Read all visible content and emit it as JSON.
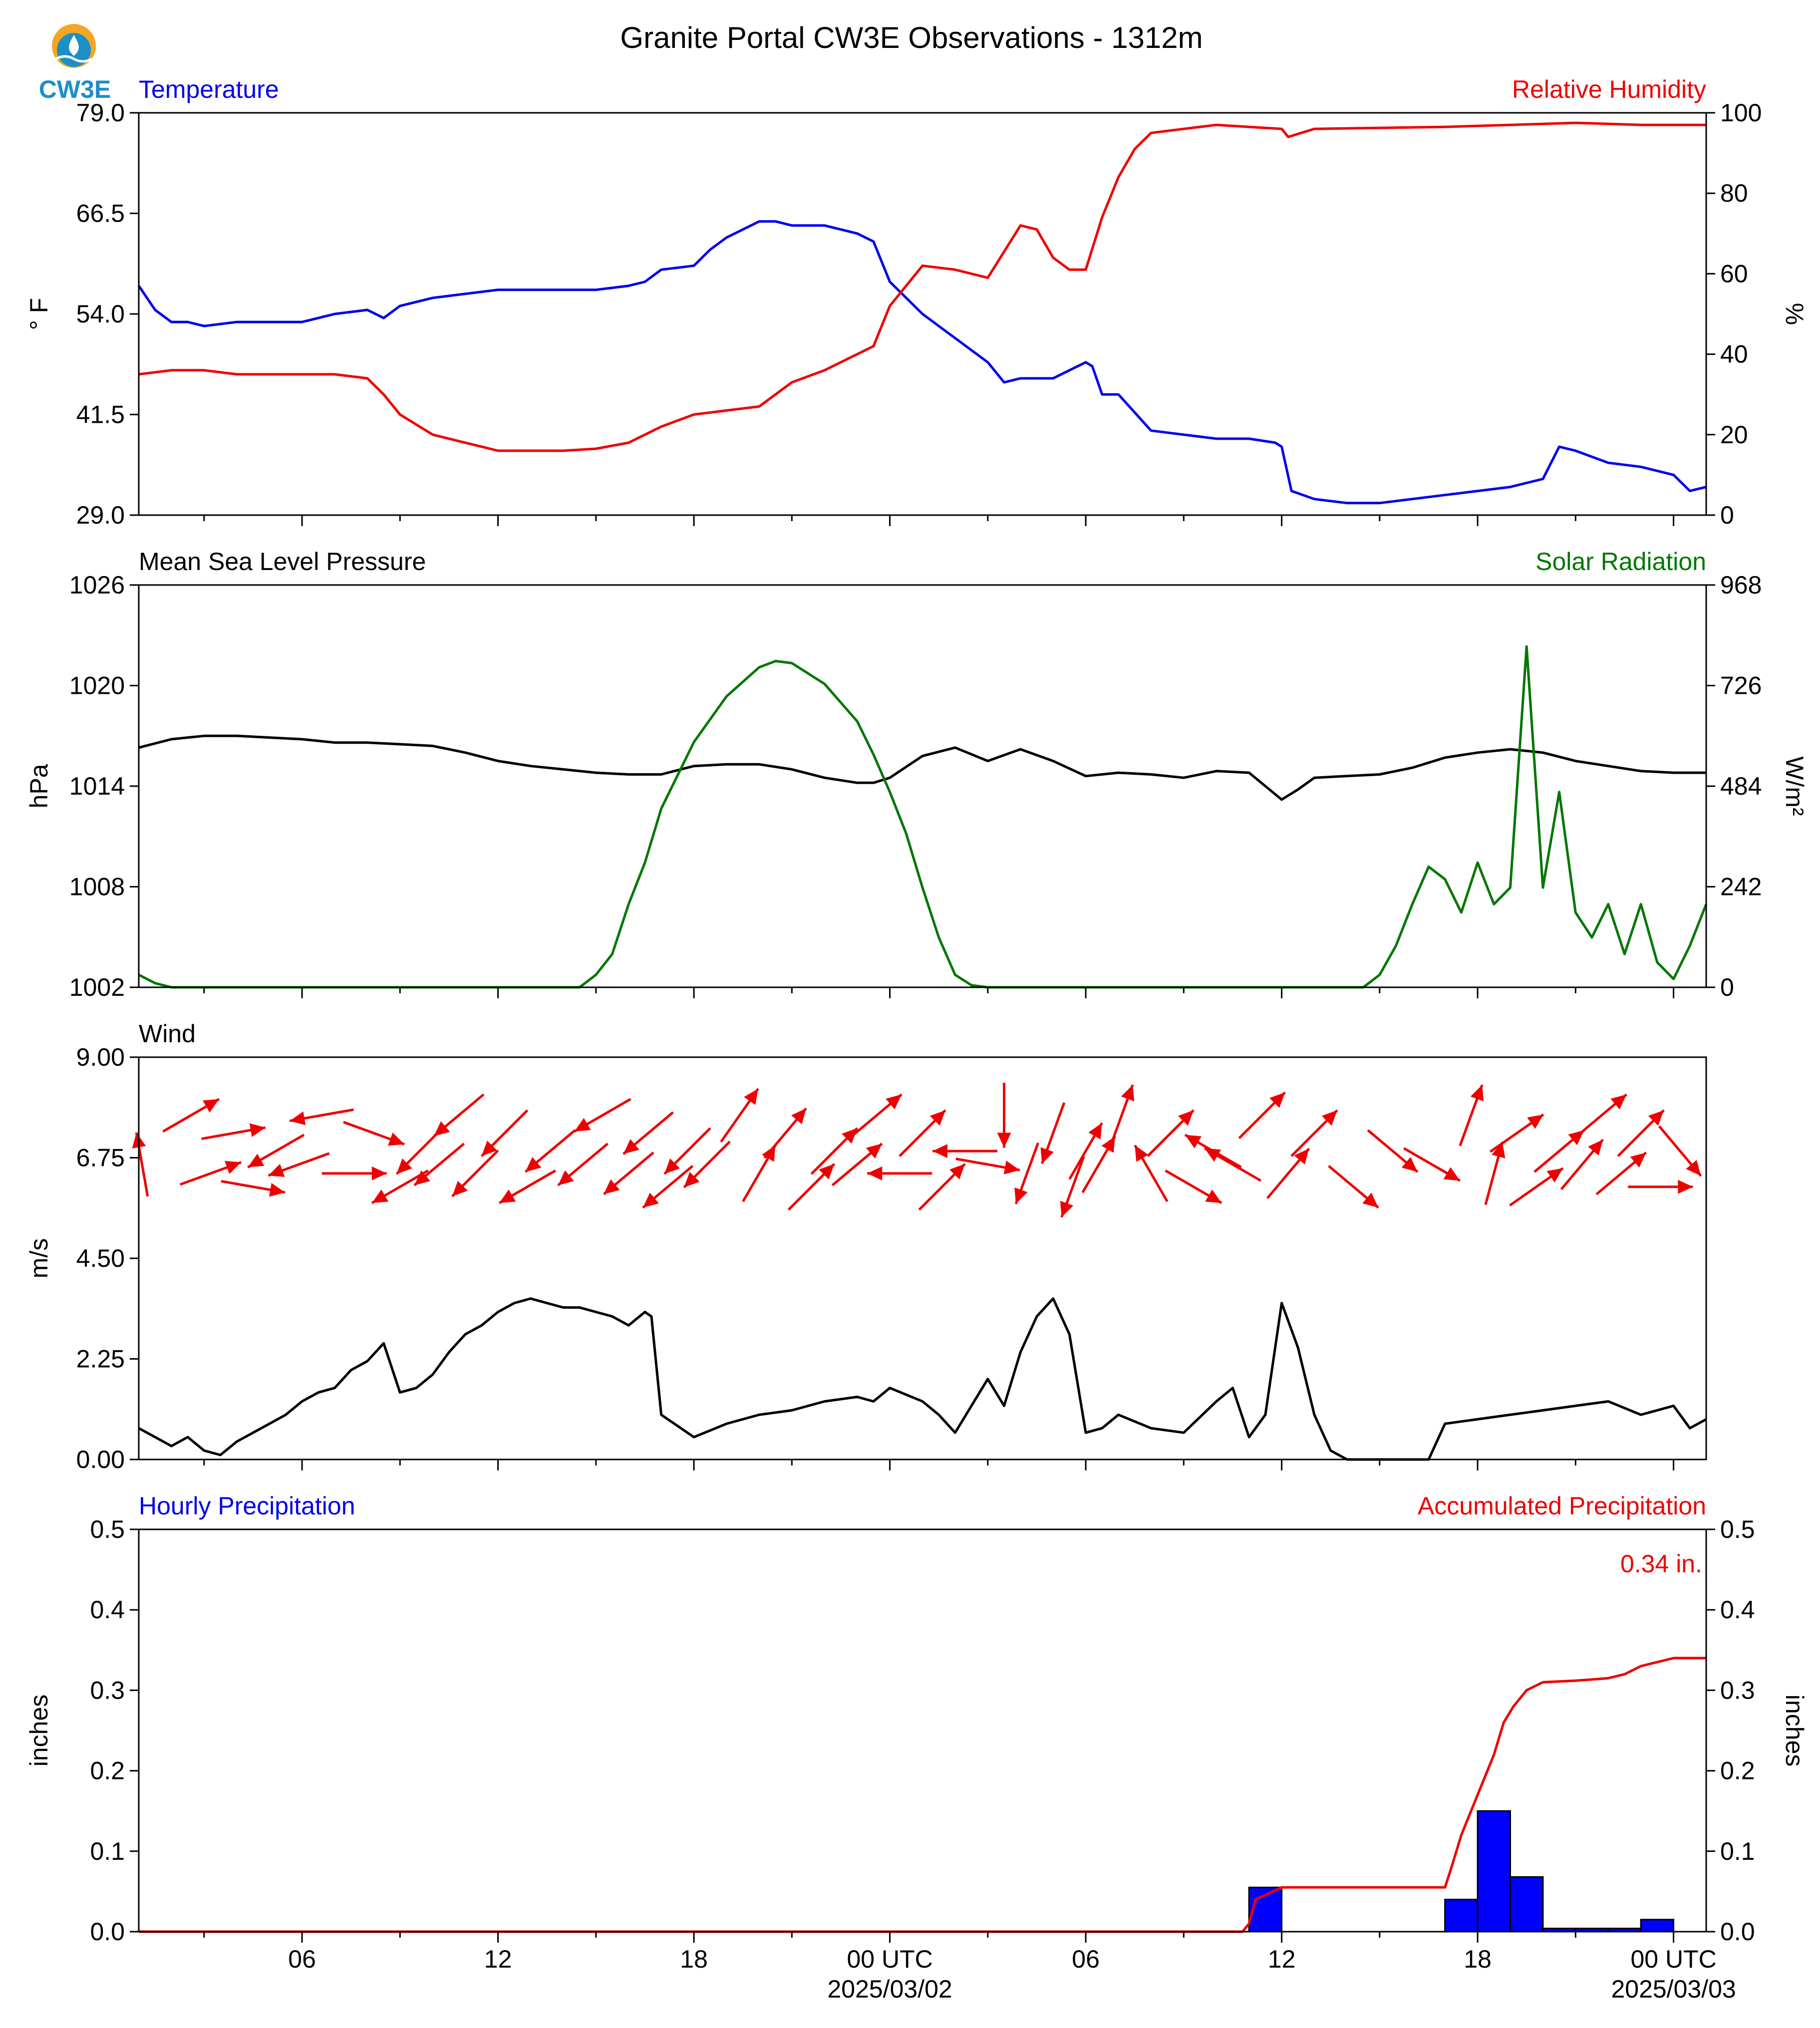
{
  "title": "Granite Portal CW3E Observations - 1312m",
  "logo_text": "CW3E",
  "colors": {
    "blue": "#0000ee",
    "red": "#ee0000",
    "green": "#007700",
    "black": "#000000",
    "bar": "#0000ff"
  },
  "x_axis": {
    "range_hours": [
      0,
      48
    ],
    "ticks": [
      {
        "h": 5,
        "label": "06",
        "sub": ""
      },
      {
        "h": 11,
        "label": "12",
        "sub": ""
      },
      {
        "h": 17,
        "label": "18",
        "sub": ""
      },
      {
        "h": 23,
        "label": "00 UTC",
        "sub": "2025/03/02"
      },
      {
        "h": 29,
        "label": "06",
        "sub": ""
      },
      {
        "h": 35,
        "label": "12",
        "sub": ""
      },
      {
        "h": 41,
        "label": "18",
        "sub": ""
      },
      {
        "h": 47,
        "label": "00 UTC",
        "sub": "2025/03/03"
      }
    ],
    "minor_hours": [
      2,
      8,
      14,
      20,
      26,
      32,
      38,
      44
    ]
  },
  "chart_data": [
    {
      "type": "line",
      "left_title": "Temperature",
      "right_title": "Relative Humidity",
      "ylabel_left": "° F",
      "ylabel_right": "%",
      "ylim_left": [
        29.0,
        79.0
      ],
      "yticks_left": [
        "29.0",
        "41.5",
        "54.0",
        "66.5",
        "79.0"
      ],
      "ylim_right": [
        0,
        100
      ],
      "yticks_right": [
        "0",
        "20",
        "40",
        "60",
        "80",
        "100"
      ],
      "series": [
        {
          "name": "Temperature",
          "axis": "left",
          "color": "#0000ee",
          "x": [
            0,
            0.5,
            1,
            1.5,
            2,
            3,
            4,
            5,
            6,
            7,
            7.5,
            8,
            9,
            10,
            11,
            12,
            13,
            14,
            15,
            15.5,
            16,
            17,
            17.5,
            18,
            19,
            19.5,
            20,
            21,
            22,
            22.5,
            22.8,
            23,
            24,
            25,
            26,
            26.5,
            27,
            28,
            29,
            29.2,
            29.5,
            30,
            31,
            32,
            33,
            34,
            34.8,
            35.0,
            35.3,
            36,
            37,
            38,
            40,
            42,
            42.5,
            43,
            43.5,
            44,
            45,
            46,
            47,
            47.5,
            48
          ],
          "y": [
            57.5,
            54.5,
            53,
            53,
            52.5,
            53,
            53,
            53,
            54,
            54.5,
            53.5,
            55,
            56,
            56.5,
            57,
            57,
            57,
            57,
            57.5,
            58,
            59.5,
            60,
            62,
            63.5,
            65.5,
            65.5,
            65,
            65,
            64,
            63,
            60,
            58,
            54,
            51,
            48,
            45.5,
            46,
            46,
            48,
            47.5,
            44,
            44,
            39.5,
            39,
            38.5,
            38.5,
            38,
            37.5,
            32,
            31,
            30.5,
            30.5,
            31.5,
            32.5,
            33,
            33.5,
            37.5,
            37,
            35.5,
            35,
            34,
            32,
            32.5
          ]
        },
        {
          "name": "Relative Humidity",
          "axis": "right",
          "color": "#ee0000",
          "x": [
            0,
            1,
            2,
            3,
            4,
            5,
            6,
            7,
            7.5,
            8,
            9,
            10,
            11,
            12,
            13,
            14,
            15,
            16,
            17,
            18,
            19,
            20,
            21,
            22,
            22.5,
            23,
            24,
            25,
            26,
            27,
            27.5,
            28,
            28.5,
            29,
            29.5,
            30,
            30.5,
            31,
            32,
            33,
            34,
            35,
            35.2,
            36,
            40,
            42,
            44,
            46,
            48
          ],
          "y": [
            35,
            36,
            36,
            35,
            35,
            35,
            35,
            34,
            30,
            25,
            20,
            18,
            16,
            16,
            16,
            16.5,
            18,
            22,
            25,
            26,
            27,
            33,
            36,
            40,
            42,
            52,
            62,
            61,
            59,
            72,
            71,
            64,
            61,
            61,
            74,
            84,
            91,
            95,
            96,
            97,
            96.5,
            96,
            94,
            96,
            96.5,
            97,
            97.5,
            97,
            97
          ]
        }
      ]
    },
    {
      "type": "line",
      "left_title": "Mean Sea Level Pressure",
      "right_title": "Solar Radiation",
      "ylabel_left": "hPa",
      "ylabel_right": "W/m²",
      "ylim_left": [
        1002,
        1026
      ],
      "yticks_left": [
        "1002",
        "1008",
        "1014",
        "1020",
        "1026"
      ],
      "ylim_right": [
        0,
        968
      ],
      "yticks_right": [
        "0",
        "242",
        "484",
        "726",
        "968"
      ],
      "series": [
        {
          "name": "Mean Sea Level Pressure",
          "axis": "left",
          "color": "#000000",
          "x": [
            0,
            1,
            2,
            3,
            4,
            5,
            6,
            7,
            8,
            9,
            10,
            11,
            12,
            13,
            14,
            15,
            16,
            17,
            18,
            19,
            20,
            21,
            22,
            22.5,
            23,
            24,
            25,
            26,
            27,
            28,
            29,
            30,
            31,
            32,
            33,
            34,
            34.5,
            35,
            35.5,
            36,
            37,
            38,
            39,
            40,
            41,
            42,
            43,
            44,
            45,
            46,
            47,
            48
          ],
          "y": [
            1016.3,
            1016.8,
            1017,
            1017,
            1016.9,
            1016.8,
            1016.6,
            1016.6,
            1016.5,
            1016.4,
            1016,
            1015.5,
            1015.2,
            1015,
            1014.8,
            1014.7,
            1014.7,
            1015.2,
            1015.3,
            1015.3,
            1015,
            1014.5,
            1014.2,
            1014.2,
            1014.5,
            1015.8,
            1016.3,
            1015.5,
            1016.2,
            1015.5,
            1014.6,
            1014.8,
            1014.7,
            1014.5,
            1014.9,
            1014.8,
            1014.0,
            1013.2,
            1013.8,
            1014.5,
            1014.6,
            1014.7,
            1015.1,
            1015.7,
            1016.0,
            1016.2,
            1016.0,
            1015.5,
            1015.2,
            1014.9,
            1014.8,
            1014.8
          ]
        },
        {
          "name": "Solar Radiation",
          "axis": "right",
          "color": "#007700",
          "x": [
            0,
            0.5,
            1,
            13.5,
            14,
            14.5,
            15,
            15.5,
            16,
            17,
            18,
            19,
            19.5,
            20,
            21,
            22,
            22.5,
            23,
            23.5,
            24,
            24.5,
            25,
            25.5,
            26,
            26.5,
            37.5,
            38,
            38.5,
            39,
            39.5,
            40,
            40.5,
            41,
            41.5,
            42,
            42.5,
            43,
            43.5,
            44,
            44.5,
            45,
            45.5,
            46,
            46.5,
            47,
            47.5,
            48
          ],
          "y": [
            30,
            10,
            0,
            0,
            30,
            80,
            200,
            300,
            430,
            590,
            700,
            770,
            785,
            780,
            730,
            640,
            560,
            470,
            370,
            240,
            120,
            30,
            5,
            0,
            0,
            0,
            30,
            100,
            200,
            290,
            260,
            180,
            300,
            200,
            240,
            820,
            240,
            470,
            180,
            120,
            200,
            80,
            200,
            60,
            20,
            100,
            200
          ]
        }
      ]
    },
    {
      "type": "line",
      "left_title": "Wind",
      "ylabel_left": "m/s",
      "ylim_left": [
        0,
        9.0
      ],
      "yticks_left": [
        "0.00",
        "2.25",
        "4.50",
        "6.75",
        "9.00"
      ],
      "series": [
        {
          "name": "Wind",
          "axis": "left",
          "color": "#000000",
          "x": [
            0,
            0.5,
            1,
            1.5,
            2,
            2.5,
            3,
            3.5,
            4,
            4.5,
            5,
            5.5,
            6,
            6.5,
            7,
            7.5,
            8,
            8.5,
            9,
            9.5,
            10,
            10.5,
            11,
            11.5,
            12,
            12.5,
            13,
            13.5,
            14,
            14.5,
            15,
            15.5,
            15.7,
            16,
            17,
            18,
            19,
            20,
            21,
            22,
            22.5,
            23,
            24,
            24.5,
            25,
            25.5,
            26,
            26.5,
            27,
            27.5,
            28,
            28.5,
            29,
            29.5,
            30,
            31,
            32,
            33,
            33.5,
            34,
            34.5,
            35,
            35.5,
            36,
            36.5,
            37,
            38,
            39,
            39.5,
            40,
            41,
            42,
            43,
            44,
            45,
            46,
            47,
            47.5,
            48
          ],
          "y": [
            0.7,
            0.5,
            0.3,
            0.5,
            0.2,
            0.1,
            0.4,
            0.6,
            0.8,
            1.0,
            1.3,
            1.5,
            1.6,
            2.0,
            2.2,
            2.6,
            1.5,
            1.6,
            1.9,
            2.4,
            2.8,
            3.0,
            3.3,
            3.5,
            3.6,
            3.5,
            3.4,
            3.4,
            3.3,
            3.2,
            3.0,
            3.3,
            3.2,
            1.0,
            0.5,
            0.8,
            1.0,
            1.1,
            1.3,
            1.4,
            1.3,
            1.6,
            1.3,
            1.0,
            0.6,
            1.2,
            1.8,
            1.2,
            2.4,
            3.2,
            3.6,
            2.8,
            0.6,
            0.7,
            1.0,
            0.7,
            0.6,
            1.3,
            1.6,
            0.5,
            1.0,
            3.5,
            2.5,
            1.0,
            0.2,
            0,
            0,
            0,
            0,
            0.8,
            0.9,
            1.0,
            1.1,
            1.2,
            1.3,
            1.0,
            1.2,
            0.7,
            0.9
          ]
        }
      ],
      "wind_barbs": {
        "description": "direction of travel in degrees clockwise from north",
        "x": [
          0.1,
          1.6,
          2.2,
          2.9,
          3.5,
          4.2,
          4.9,
          5.6,
          6.6,
          7.2,
          8.0,
          8.6,
          9.2,
          9.8,
          10.3,
          11.2,
          11.9,
          12.6,
          13.6,
          14.2,
          15.0,
          15.6,
          16.2,
          16.8,
          17.4,
          18.4,
          19.0,
          19.8,
          20.6,
          21.3,
          22.0,
          22.6,
          23.3,
          24.0,
          24.6,
          25.3,
          26.0,
          26.5,
          27.2,
          28.0,
          28.6,
          29.0,
          29.4,
          30.1,
          31.0,
          31.6,
          32.3,
          32.9,
          33.5,
          34.4,
          35.2,
          36.0,
          37.2,
          38.4,
          39.6,
          40.8,
          41.5,
          42.2,
          42.8,
          43.5,
          44.2,
          44.8,
          45.4,
          46.0,
          46.6,
          47.2
        ],
        "dir": [
          350,
          60,
          70,
          80,
          100,
          240,
          250,
          260,
          90,
          110,
          240,
          225,
          230,
          230,
          225,
          225,
          240,
          230,
          230,
          240,
          230,
          230,
          230,
          225,
          225,
          35,
          30,
          40,
          45,
          45,
          50,
          50,
          270,
          45,
          45,
          270,
          100,
          180,
          200,
          200,
          200,
          30,
          30,
          20,
          330,
          45,
          120,
          300,
          300,
          45,
          40,
          45,
          130,
          130,
          120,
          20,
          15,
          55,
          55,
          50,
          40,
          50,
          50,
          45,
          90,
          140
        ]
      }
    },
    {
      "type": "bar",
      "left_title": "Hourly Precipitation",
      "right_title": "Accumulated Precipitation",
      "ylabel_left": "inches",
      "ylabel_right": "inches",
      "ylim_left": [
        0,
        0.5
      ],
      "yticks_left": [
        "0.0",
        "0.1",
        "0.2",
        "0.3",
        "0.4",
        "0.5"
      ],
      "ylim_right": [
        0,
        0.5
      ],
      "yticks_right": [
        "0.0",
        "0.1",
        "0.2",
        "0.3",
        "0.4",
        "0.5"
      ],
      "annotation": "0.34 in.",
      "bars": {
        "name": "Hourly Precipitation",
        "color": "#0000ff",
        "x_start": [
          34,
          40,
          41,
          42,
          43,
          44,
          45,
          46
        ],
        "values": [
          0.055,
          0.04,
          0.15,
          0.068,
          0.004,
          0.004,
          0.004,
          0.015
        ]
      },
      "series": [
        {
          "name": "Accumulated Precipitation",
          "axis": "right",
          "color": "#ee0000",
          "x": [
            0,
            33.8,
            34,
            34.2,
            35,
            38,
            39,
            40,
            40.2,
            40.5,
            40.8,
            41.2,
            41.5,
            41.8,
            42.1,
            42.5,
            43,
            44,
            45,
            45.5,
            46,
            47,
            48
          ],
          "y": [
            0,
            0,
            0.01,
            0.04,
            0.055,
            0.055,
            0.055,
            0.055,
            0.08,
            0.12,
            0.15,
            0.19,
            0.22,
            0.26,
            0.28,
            0.3,
            0.31,
            0.312,
            0.315,
            0.32,
            0.33,
            0.34,
            0.34
          ]
        }
      ]
    }
  ]
}
